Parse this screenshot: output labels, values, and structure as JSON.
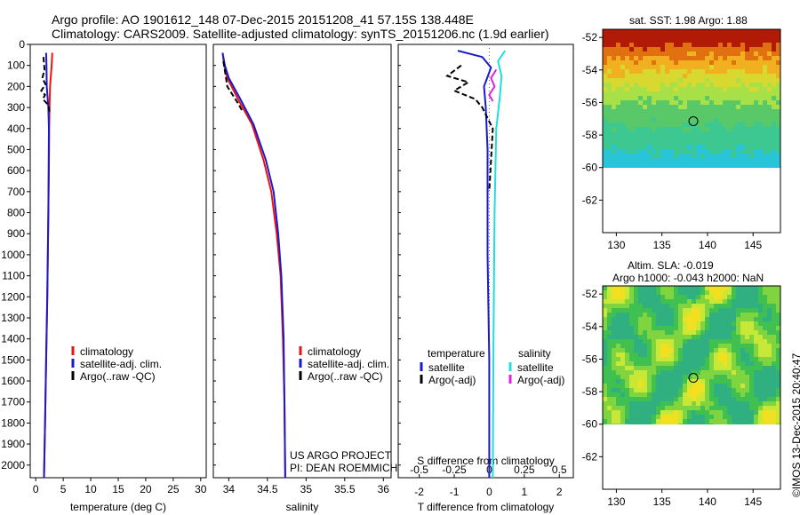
{
  "header": {
    "line1": "Argo profile: AO 1901612_148 07-Dec-2015 20151208_41 57.15S 138.448E",
    "line2": "Climatology: CARS2009. Satellite-adjusted climatology: synTS_20151206.nc (1.9d earlier)"
  },
  "credits": {
    "project": "US ARGO PROJECT",
    "pi": "PI: DEAN ROEMMICH",
    "imos": "©IMOS 13-Dec-2015 20:40:47"
  },
  "colors": {
    "climatology": "#ee1111",
    "satellite": "#1a1acc",
    "argo": "#000000",
    "sal_satellite": "#22dddd",
    "sal_argo": "#dd22dd"
  },
  "chart_data": [
    {
      "type": "line",
      "xlabel": "temperature (deg C)",
      "ylabel": "",
      "xlim": [
        -1,
        31
      ],
      "ylim": [
        2060,
        0
      ],
      "xticks": [
        "0",
        "5",
        "10",
        "15",
        "20",
        "25",
        "30"
      ],
      "yticks": [
        "0",
        "100",
        "200",
        "300",
        "400",
        "500",
        "600",
        "700",
        "800",
        "900",
        "1000",
        "1100",
        "1200",
        "1300",
        "1400",
        "1500",
        "1600",
        "1700",
        "1800",
        "1900",
        "2000"
      ],
      "legend": [
        "climatology",
        "satellite-adj. clim.",
        "Argo(..raw -QC)"
      ],
      "legend_placement": "lower-right",
      "series": [
        {
          "name": "climatology",
          "color_key": "climatology",
          "x": [
            3.0,
            2.9,
            2.6,
            2.5,
            2.45,
            2.4,
            2.3,
            2.2,
            2.1,
            1.9,
            1.7,
            1.5
          ],
          "y": [
            40,
            100,
            200,
            300,
            400,
            600,
            800,
            1000,
            1200,
            1500,
            1800,
            2060
          ]
        },
        {
          "name": "satellite-adj. clim.",
          "color_key": "satellite",
          "x": [
            1.9,
            1.95,
            2.0,
            2.3,
            2.4,
            2.35,
            2.3,
            2.2,
            2.1,
            1.9,
            1.7,
            1.5
          ],
          "y": [
            40,
            100,
            200,
            300,
            400,
            600,
            800,
            1000,
            1200,
            1500,
            1800,
            2060
          ]
        },
        {
          "name": "Argo(..raw -QC)",
          "color_key": "argo",
          "x": [
            1.4,
            1.6,
            1.2,
            1.8,
            1.0,
            1.7,
            1.3,
            2.0,
            2.4,
            2.5
          ],
          "y": [
            60,
            120,
            160,
            190,
            220,
            240,
            260,
            280,
            300,
            320
          ]
        }
      ]
    },
    {
      "type": "line",
      "xlabel": "salinity",
      "ylabel": "",
      "xlim": [
        33.8,
        36.1
      ],
      "ylim": [
        2060,
        0
      ],
      "xticks": [
        "34",
        "34.5",
        "35",
        "35.5",
        "36"
      ],
      "legend": [
        "climatology",
        "satellite-adj. clim.",
        "Argo(..raw -QC)"
      ],
      "legend_placement": "lower-right",
      "series": [
        {
          "name": "climatology",
          "color_key": "climatology",
          "x": [
            33.92,
            33.94,
            33.98,
            34.12,
            34.3,
            34.45,
            34.55,
            34.62,
            34.67,
            34.7,
            34.72,
            34.73
          ],
          "y": [
            40,
            100,
            160,
            260,
            380,
            550,
            700,
            900,
            1100,
            1400,
            1700,
            2060
          ]
        },
        {
          "name": "satellite-adj. clim.",
          "color_key": "satellite",
          "x": [
            33.92,
            33.95,
            34.0,
            34.15,
            34.32,
            34.48,
            34.58,
            34.64,
            34.68,
            34.71,
            34.72,
            34.73
          ],
          "y": [
            40,
            100,
            160,
            260,
            380,
            550,
            700,
            900,
            1100,
            1400,
            1700,
            2060
          ]
        },
        {
          "name": "Argo(..raw -QC)",
          "color_key": "argo",
          "x": [
            33.93,
            33.96,
            33.98,
            34.05,
            34.12,
            34.18
          ],
          "y": [
            80,
            150,
            200,
            240,
            280,
            320
          ]
        }
      ]
    },
    {
      "type": "line",
      "xlabel": "T difference from climatology",
      "xlabel_top": "S difference from climatology",
      "xlim": [
        -2.6,
        2.4
      ],
      "ylim": [
        2060,
        0
      ],
      "xticks": [
        "-2",
        "-1",
        "0",
        "1",
        "2"
      ],
      "xticks_top": [
        "-0.5",
        "-0.25",
        "0",
        "0.25",
        "0.5"
      ],
      "legend_groups": [
        {
          "heading": "temperature",
          "items": [
            "satellite",
            "Argo(-adj)"
          ]
        },
        {
          "heading": "salinity",
          "items": [
            "satellite",
            "Argo(-adj)"
          ]
        }
      ],
      "legend_placement": "lower",
      "series": [
        {
          "name": "satellite",
          "group": "temperature",
          "color_key": "satellite",
          "x": [
            -0.9,
            -0.2,
            0.05,
            -0.15,
            -0.1,
            -0.05,
            -0.05,
            0.0,
            0.0
          ],
          "y": [
            30,
            60,
            110,
            200,
            300,
            500,
            1000,
            1500,
            2060
          ]
        },
        {
          "name": "Argo(-adj)",
          "group": "temperature",
          "color_key": "argo",
          "x": [
            -0.8,
            -1.2,
            -0.6,
            -1.0,
            -0.4,
            -0.2,
            0.1,
            0.0
          ],
          "y": [
            100,
            150,
            180,
            220,
            260,
            300,
            400,
            700
          ]
        },
        {
          "name": "satellite",
          "group": "salinity",
          "color_key": "sal_satellite",
          "x": [
            0.45,
            0.25,
            0.35,
            0.3,
            0.2,
            0.15,
            0.12,
            0.1
          ],
          "y": [
            30,
            80,
            150,
            250,
            400,
            800,
            1400,
            2060
          ]
        },
        {
          "name": "Argo(-adj)",
          "group": "salinity",
          "color_key": "sal_argo",
          "x": [
            0.2,
            0.05,
            0.15,
            0.0,
            0.1
          ],
          "y": [
            120,
            160,
            200,
            240,
            270
          ]
        }
      ]
    },
    {
      "type": "heatmap",
      "title": "sat. SST: 1.98 Argo: 1.88",
      "xticks": [
        "130",
        "135",
        "140",
        "145"
      ],
      "yticks": [
        "-52",
        "-54",
        "-56",
        "-58",
        "-60",
        "-62"
      ],
      "xlim": [
        128.5,
        148
      ],
      "ylim": [
        -64,
        -51.5
      ],
      "data_ylim": [
        -60,
        -51.5
      ],
      "marker": {
        "lon": 138.448,
        "lat": -57.15
      }
    },
    {
      "type": "heatmap",
      "title": "Altim. SLA: -0.019",
      "subtitle": "Argo h1000: -0.043 h2000: NaN",
      "xticks": [
        "130",
        "135",
        "140",
        "145"
      ],
      "yticks": [
        "-52",
        "-54",
        "-56",
        "-58",
        "-60",
        "-62"
      ],
      "xlim": [
        128.5,
        148
      ],
      "ylim": [
        -64,
        -51.5
      ],
      "data_ylim": [
        -60,
        -51.5
      ],
      "marker": {
        "lon": 138.448,
        "lat": -57.15
      }
    }
  ]
}
